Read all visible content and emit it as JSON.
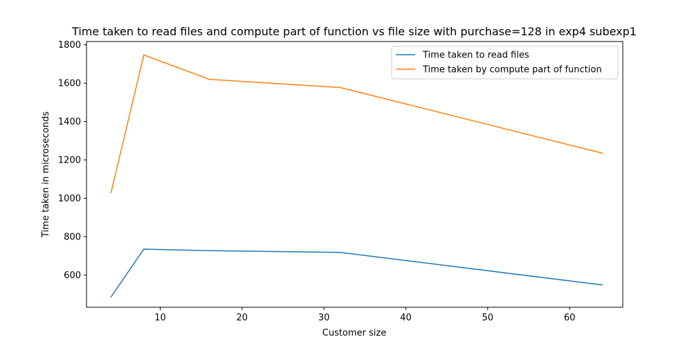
{
  "chart_data": {
    "type": "line",
    "title": "Time taken to read files and compute part of function vs file size with purchase=128 in exp4 subexp1",
    "xlabel": "Customer size",
    "ylabel": "Time taken in microseconds",
    "x": [
      4,
      8,
      16,
      32,
      64
    ],
    "series": [
      {
        "name": "Time taken to read files",
        "color": "#1f77b4",
        "values": [
          486,
          735,
          727,
          718,
          548
        ]
      },
      {
        "name": "Time taken by compute part of function",
        "color": "#ff7f0e",
        "values": [
          1030,
          1747,
          1620,
          1577,
          1235
        ]
      }
    ],
    "xlim": [
      1,
      66.5
    ],
    "ylim": [
      432,
      1817
    ],
    "xticks": [
      10,
      20,
      30,
      40,
      50,
      60
    ],
    "yticks": [
      600,
      800,
      1000,
      1200,
      1400,
      1600,
      1800
    ],
    "grid": false,
    "legend_position": "top-right"
  }
}
